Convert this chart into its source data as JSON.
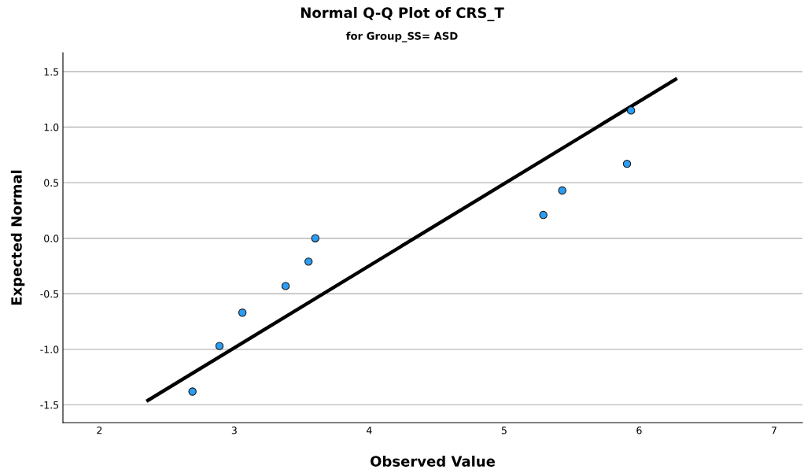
{
  "chart_data": {
    "type": "scatter",
    "title": "Normal Q-Q Plot of CRS_T",
    "subtitle": "for Group_SS= ASD",
    "xlabel": "Observed Value",
    "ylabel": "Expected Normal",
    "series": [
      {
        "color": "#2a9df4",
        "marker": "circle",
        "x": [
          2.69,
          2.89,
          3.06,
          3.38,
          3.55,
          3.6,
          5.29,
          5.43,
          5.91,
          5.94
        ],
        "values": [
          -1.38,
          -0.97,
          -0.67,
          -0.43,
          -0.21,
          0.0,
          0.21,
          0.43,
          0.67,
          1.15
        ]
      },
      {
        "type": "line",
        "color": "#000000",
        "x": [
          2.36,
          6.27
        ],
        "values": [
          -1.46,
          1.43
        ]
      }
    ],
    "xlim": [
      1.73,
      7.21
    ],
    "ylim": [
      -1.66,
      1.67
    ],
    "xticks": [
      2,
      3,
      4,
      5,
      6,
      7
    ],
    "yticks": [
      {
        "value": -1.5,
        "label": "-1.5"
      },
      {
        "value": -1.0,
        "label": "-1.0"
      },
      {
        "value": -0.5,
        "label": "-0.5"
      },
      {
        "value": 0.0,
        "label": "0.0"
      },
      {
        "value": 0.5,
        "label": "0.5"
      },
      {
        "value": 1.0,
        "label": "1.0"
      },
      {
        "value": 1.5,
        "label": "1.5"
      }
    ],
    "grid": "y",
    "legend": false
  }
}
